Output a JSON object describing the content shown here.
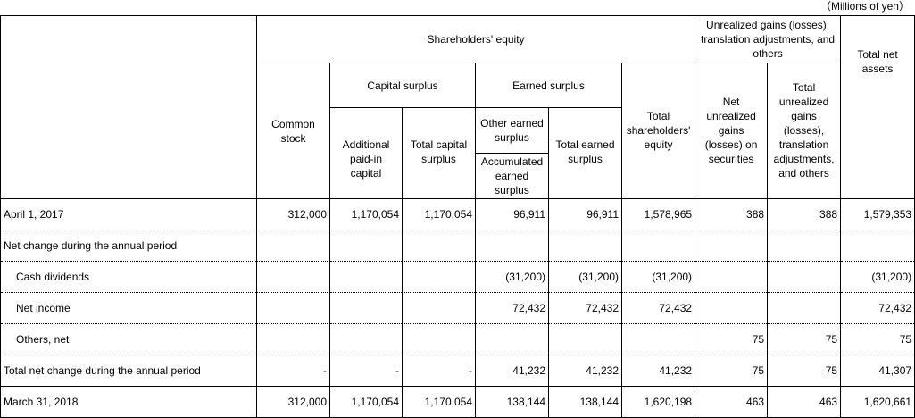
{
  "unit_label": "（Millions of yen）",
  "headers": {
    "shareholders_equity": "Shareholders' equity",
    "unrealized_group": "Unrealized gains (losses), translation adjustments, and others",
    "common_stock": "Common stock",
    "capital_surplus": "Capital surplus",
    "earned_surplus": "Earned surplus",
    "total_shareholders_equity": "Total shareholders' equity",
    "net_unrealized_gains": "Net unrealized gains (losses) on securities",
    "total_unrealized_gains": "Total unrealized gains (losses), translation adjustments, and others",
    "total_net_assets": "Total net assets",
    "additional_paid_in_capital": "Additional paid-in capital",
    "total_capital_surplus": "Total capital surplus",
    "other_earned_surplus": "Other earned surplus",
    "total_earned_surplus": "Total earned surplus",
    "accumulated_earned_surplus": "Accumulated earned surplus"
  },
  "rows": [
    {
      "label": "April 1, 2017",
      "values": [
        "312,000",
        "1,170,054",
        "1,170,054",
        "96,911",
        "96,911",
        "1,578,965",
        "388",
        "388",
        "1,579,353"
      ]
    },
    {
      "label": "Net change during the annual period",
      "values": [
        "",
        "",
        "",
        "",
        "",
        "",
        "",
        "",
        ""
      ]
    },
    {
      "label": "Cash dividends",
      "values": [
        "",
        "",
        "",
        "(31,200)",
        "(31,200)",
        "(31,200)",
        "",
        "",
        "(31,200)"
      ]
    },
    {
      "label": "Net income",
      "values": [
        "",
        "",
        "",
        "72,432",
        "72,432",
        "72,432",
        "",
        "",
        "72,432"
      ]
    },
    {
      "label": "Others, net",
      "values": [
        "",
        "",
        "",
        "",
        "",
        "",
        "75",
        "75",
        "75"
      ]
    },
    {
      "label": "Total net change during the annual period",
      "values": [
        "-",
        "-",
        "-",
        "41,232",
        "41,232",
        "41,232",
        "75",
        "75",
        "41,307"
      ]
    },
    {
      "label": "March 31, 2018",
      "values": [
        "312,000",
        "1,170,054",
        "1,170,054",
        "138,144",
        "138,144",
        "1,620,198",
        "463",
        "463",
        "1,620,661"
      ]
    }
  ]
}
